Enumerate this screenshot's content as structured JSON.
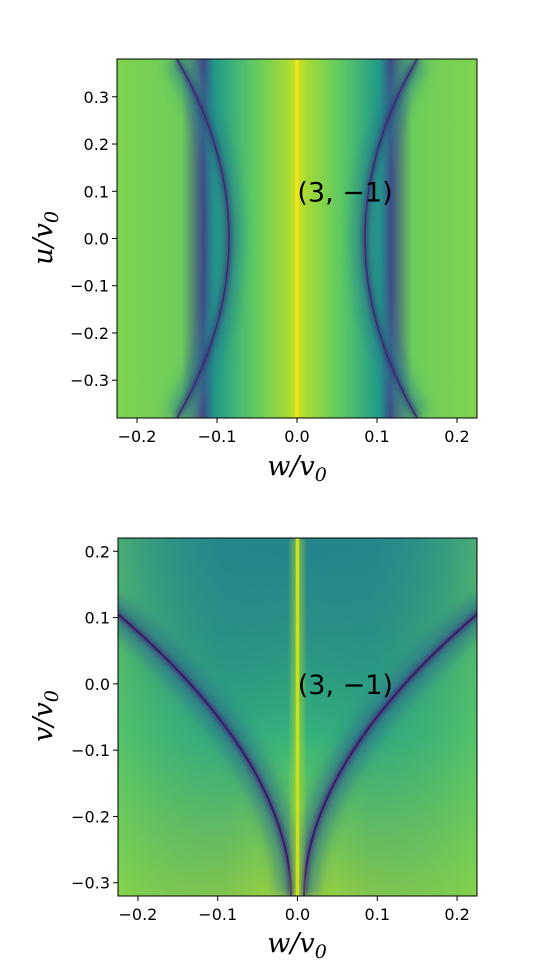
{
  "chart_data": [
    {
      "type": "heatmap",
      "colormap": "viridis",
      "xlabel": {
        "base": "w/v",
        "subscript": "0"
      },
      "ylabel": {
        "base": "u/v",
        "subscript": "0"
      },
      "xlim": [
        -0.225,
        0.225
      ],
      "ylim": [
        -0.38,
        0.38
      ],
      "xticks": [
        -0.2,
        -0.1,
        0.0,
        0.1,
        0.2
      ],
      "xtick_labels": [
        "−0.2",
        "−0.1",
        "0.0",
        "0.1",
        "0.2"
      ],
      "yticks": [
        -0.3,
        -0.2,
        -0.1,
        0.0,
        0.1,
        0.2,
        0.3
      ],
      "ytick_labels": [
        "−0.3",
        "−0.2",
        "−0.1",
        "0.0",
        "0.1",
        "0.2",
        "0.3"
      ],
      "annotation": {
        "text": "(3, −1)",
        "x": 0.06,
        "y": 0.1
      },
      "features": {
        "bright_line_at_w": 0.0,
        "dark_curves": "two arcs, |w| ≈ 0.085 at u = 0, widening to |w| ≈ 0.15 at u = ±0.38"
      }
    },
    {
      "type": "heatmap",
      "colormap": "viridis",
      "xlabel": {
        "base": "w/v",
        "subscript": "0"
      },
      "ylabel": {
        "base": "v/v",
        "subscript": "0"
      },
      "xlim": [
        -0.225,
        0.225
      ],
      "ylim": [
        -0.32,
        0.22
      ],
      "xticks": [
        -0.2,
        -0.1,
        0.0,
        0.1,
        0.2
      ],
      "xtick_labels": [
        "−0.2",
        "−0.1",
        "0.0",
        "0.1",
        "0.2"
      ],
      "yticks": [
        -0.3,
        -0.2,
        -0.1,
        0.0,
        0.1,
        0.2
      ],
      "ytick_labels": [
        "−0.3",
        "−0.2",
        "−0.1",
        "0.0",
        "0.1",
        "0.2"
      ],
      "annotation": {
        "text": "(3, −1)",
        "x": 0.06,
        "y": 0.0
      },
      "features": {
        "bright_line_at_w": 0.0,
        "dark_curves": "two arcs meeting near w = 0 at v = -0.32, reaching |w| = 0.225 at v ≈ 0.105"
      }
    }
  ]
}
